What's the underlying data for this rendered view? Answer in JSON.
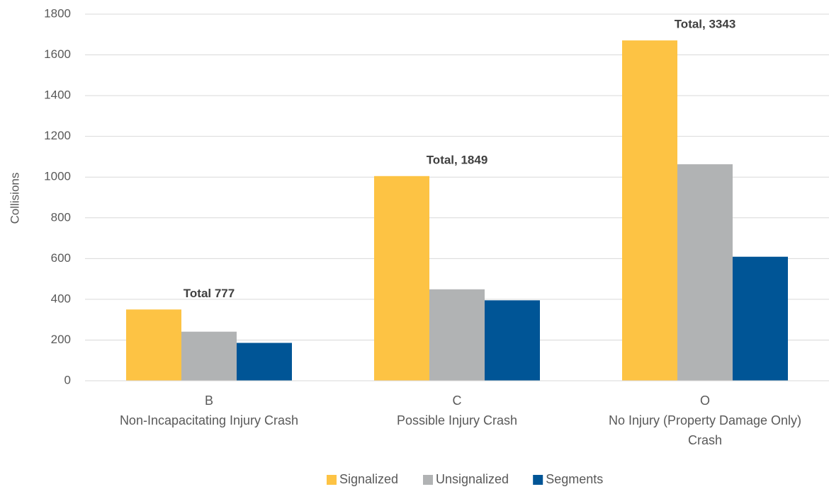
{
  "chart_data": {
    "type": "bar",
    "categories": [
      "B\nNon-Incapacitating Injury Crash",
      "C\nPossible Injury Crash",
      "O\nNo Injury (Property Damage Only)\nCrash"
    ],
    "series": [
      {
        "name": "Signalized",
        "color": "#fdc344",
        "values": [
          350,
          1005,
          1671
        ]
      },
      {
        "name": "Unsignalized",
        "color": "#b1b3b4",
        "values": [
          241,
          449,
          1063
        ]
      },
      {
        "name": "Segments",
        "color": "#005596",
        "values": [
          186,
          395,
          609
        ]
      }
    ],
    "annotations": [
      "Total 777",
      "Total, 1849",
      "Total, 3343"
    ],
    "ylabel": "Collisions",
    "ylim": [
      0,
      1800
    ],
    "yticks": [
      0,
      200,
      400,
      600,
      800,
      1000,
      1200,
      1400,
      1600,
      1800
    ],
    "grid": true,
    "legend": "bottom"
  }
}
